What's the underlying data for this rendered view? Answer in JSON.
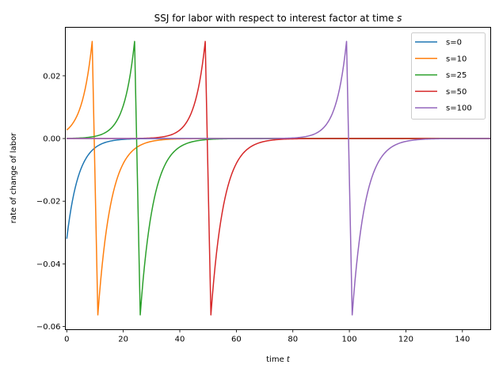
{
  "chart_data": {
    "type": "line",
    "title": "SSJ for labor with respect to interest factor at time s",
    "title_prefix": "SSJ for labor with respect to interest factor at time ",
    "title_italic": "s",
    "xlabel": "time t",
    "xlabel_prefix": "time ",
    "xlabel_italic": "t",
    "ylabel": "rate of change of labor",
    "xlim": [
      -0.5,
      150
    ],
    "ylim": [
      -0.061,
      0.0355
    ],
    "xticks": [
      0,
      20,
      40,
      60,
      80,
      100,
      120,
      140
    ],
    "xtick_labels": [
      "0",
      "20",
      "40",
      "60",
      "80",
      "100",
      "120",
      "140"
    ],
    "yticks": [
      0.02,
      0.0,
      -0.02,
      -0.04,
      -0.06
    ],
    "ytick_labels": [
      "0.02",
      "0.00",
      "−0.02",
      "−0.04",
      "−0.06"
    ],
    "grid": false,
    "legend_position": "upper right",
    "series": [
      {
        "name": "s=0",
        "s": 0,
        "color": "#1f77b4",
        "start_value": -0.032,
        "peak": 0.0,
        "trough": -0.032
      },
      {
        "name": "s=10",
        "s": 10,
        "color": "#ff7f0e",
        "start_value": 0.0058,
        "peak": 0.031,
        "trough": -0.0563
      },
      {
        "name": "s=25",
        "s": 25,
        "color": "#2ca02c",
        "start_value": 0.0002,
        "peak": 0.031,
        "trough": -0.0563
      },
      {
        "name": "s=50",
        "s": 50,
        "color": "#d62728",
        "start_value": 0.0,
        "peak": 0.031,
        "trough": -0.0563
      },
      {
        "name": "s=100",
        "s": 100,
        "color": "#9467bd",
        "start_value": 0.0,
        "peak": 0.031,
        "trough": -0.0563
      }
    ]
  }
}
